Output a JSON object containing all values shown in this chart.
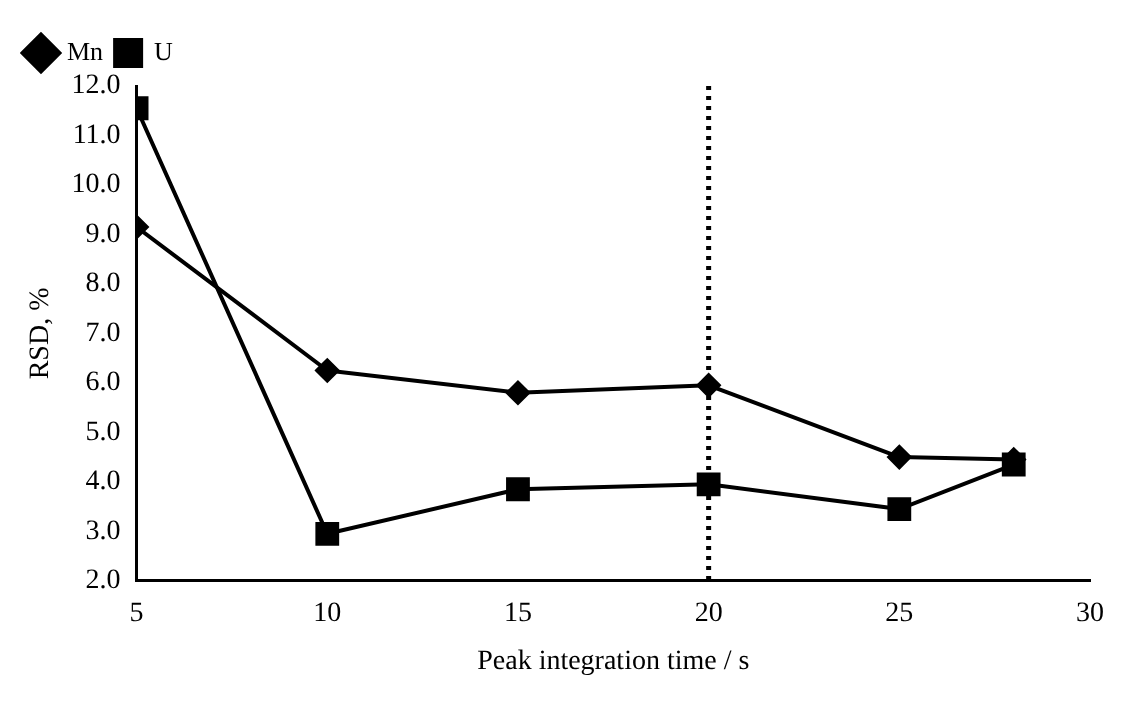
{
  "chart_data": {
    "type": "line",
    "xlabel": "Peak integration time / s",
    "ylabel": "RSD, %",
    "x": [
      5,
      10,
      15,
      20,
      25,
      28
    ],
    "series": [
      {
        "name": "Mn",
        "color": "#000000",
        "marker": "diamond",
        "values": [
          9.15,
          6.25,
          5.8,
          5.95,
          4.5,
          4.45
        ]
      },
      {
        "name": "U",
        "color": "#000000",
        "marker": "square",
        "values": [
          11.55,
          2.95,
          3.85,
          3.95,
          3.45,
          4.35
        ]
      }
    ],
    "xlim": [
      5,
      30
    ],
    "xticks": [
      5,
      10,
      15,
      20,
      25,
      30
    ],
    "ylim": [
      2,
      12
    ],
    "yticks": [
      {
        "value": 2,
        "label": "2.0"
      },
      {
        "value": 3,
        "label": "3.0"
      },
      {
        "value": 4,
        "label": "4.0"
      },
      {
        "value": 5,
        "label": "5.0"
      },
      {
        "value": 6,
        "label": "6.0"
      },
      {
        "value": 7,
        "label": "7.0"
      },
      {
        "value": 8,
        "label": "8.0"
      },
      {
        "value": 9,
        "label": "9.0"
      },
      {
        "value": 10,
        "label": "10.0"
      },
      {
        "value": 11,
        "label": "11.0"
      },
      {
        "value": 12,
        "label": "12.0"
      }
    ],
    "ref_lines": [
      {
        "axis": "x",
        "value": 20,
        "line_style": "dotted",
        "color": "#000000"
      }
    ],
    "grid": false,
    "legend": "top left",
    "line_style": "solid"
  }
}
